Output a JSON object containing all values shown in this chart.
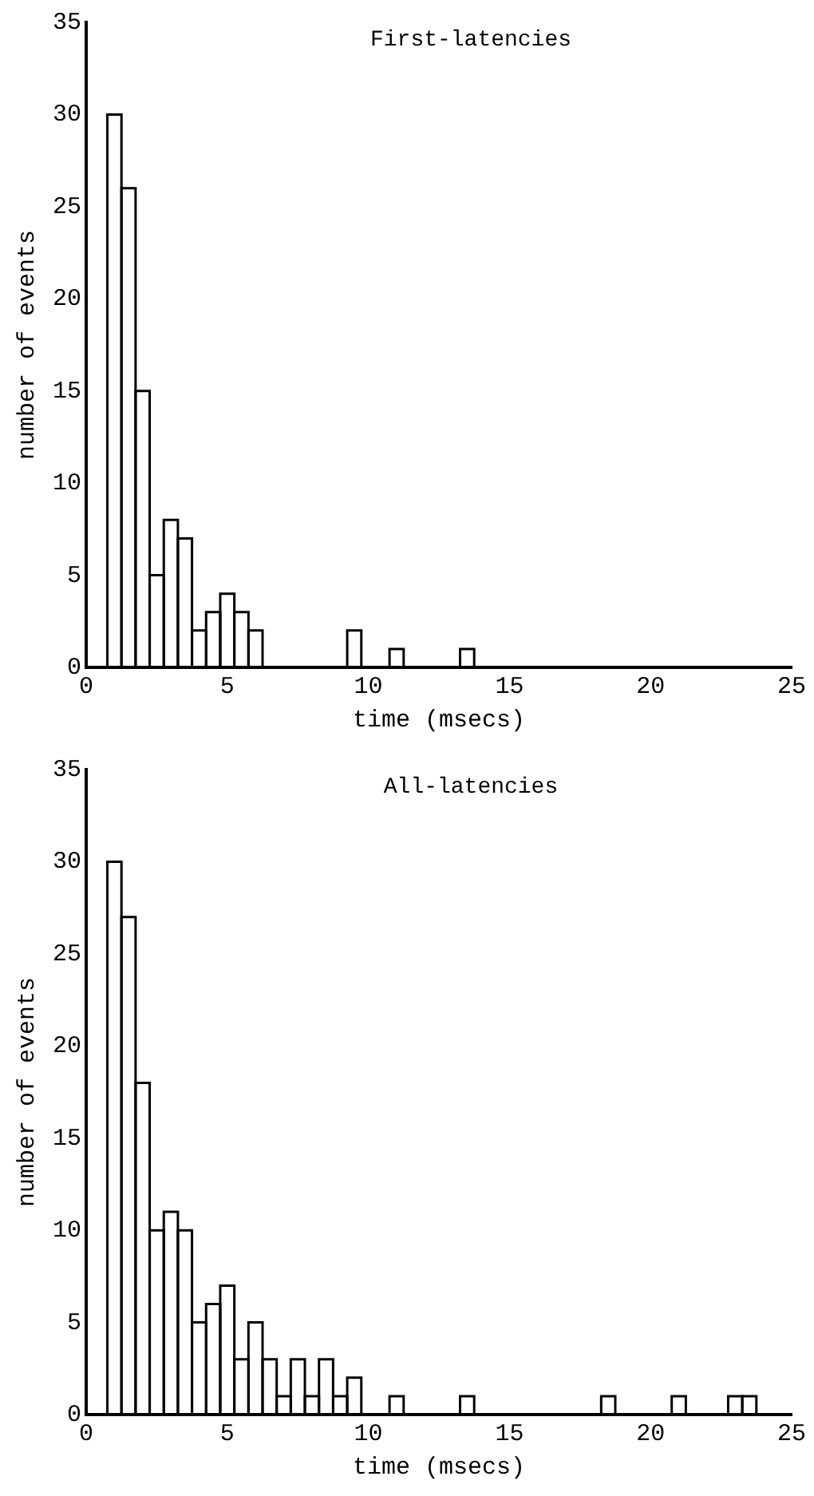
{
  "chart_data": [
    {
      "type": "histogram",
      "title": "First-latencies",
      "xlabel": "time (msecs)",
      "ylabel": "number of events",
      "color": "#000000",
      "bins": [
        0.75,
        1.25,
        1.75,
        2.25,
        2.75,
        3.25,
        3.75,
        4.25,
        4.75,
        5.25,
        5.75,
        6.25,
        6.75,
        7.25,
        7.75,
        8.25,
        8.75,
        9.25,
        9.75,
        10.25,
        10.75,
        11.25,
        11.75,
        12.25,
        12.75,
        13.25,
        13.75
      ],
      "values": [
        30,
        26,
        15,
        5,
        8,
        7,
        2,
        3,
        4,
        3,
        2,
        0,
        0,
        0,
        0,
        0,
        0,
        2,
        0,
        0,
        1,
        0,
        0,
        0,
        0,
        1
      ],
      "xlim": [
        0,
        25
      ],
      "xticks": [
        0,
        5,
        10,
        15,
        20,
        25
      ],
      "ylim": [
        0,
        35
      ],
      "yticks": [
        0,
        5,
        10,
        15,
        20,
        25,
        30,
        35
      ],
      "grid": false
    },
    {
      "type": "histogram",
      "title": "All-latencies",
      "xlabel": "time (msecs)",
      "ylabel": "number of events",
      "color": "#000000",
      "bins": [
        0.75,
        1.25,
        1.75,
        2.25,
        2.75,
        3.25,
        3.75,
        4.25,
        4.75,
        5.25,
        5.75,
        6.25,
        6.75,
        7.25,
        7.75,
        8.25,
        8.75,
        9.25,
        9.75,
        10.25,
        10.75,
        11.25,
        11.75,
        12.25,
        12.75,
        13.25,
        13.75,
        14.25,
        14.75,
        15.25,
        15.75,
        16.25,
        16.75,
        17.25,
        17.75,
        18.25,
        18.75,
        19.25,
        19.75,
        20.25,
        20.75,
        21.25,
        21.75,
        22.25,
        22.75,
        23.25,
        23.75
      ],
      "values": [
        30,
        27,
        18,
        10,
        11,
        10,
        5,
        6,
        7,
        3,
        5,
        3,
        1,
        3,
        1,
        3,
        1,
        2,
        0,
        0,
        1,
        0,
        0,
        0,
        0,
        1,
        0,
        0,
        0,
        0,
        0,
        0,
        0,
        0,
        0,
        1,
        0,
        0,
        0,
        0,
        1,
        0,
        0,
        0,
        1,
        1
      ],
      "xlim": [
        0,
        25
      ],
      "xticks": [
        0,
        5,
        10,
        15,
        20,
        25
      ],
      "ylim": [
        0,
        35
      ],
      "yticks": [
        0,
        5,
        10,
        15,
        20,
        25,
        30,
        35
      ],
      "grid": false
    }
  ]
}
